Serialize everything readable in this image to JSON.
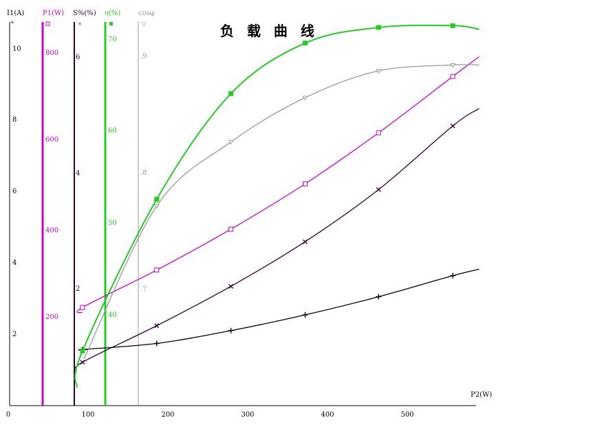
{
  "chart_data": {
    "type": "line",
    "title": "负 载 曲 线",
    "xlabel": "P2(W)",
    "xlim": [
      0,
      590
    ],
    "x_ticks": [
      "0",
      "100",
      "200",
      "300",
      "400",
      "500"
    ],
    "grid": false,
    "axes": [
      {
        "key": "i1",
        "label": "I1(A)",
        "color": "#000000",
        "ticks": [
          "2",
          "4",
          "6",
          "8",
          "10"
        ]
      },
      {
        "key": "p1",
        "label": "P1(W)",
        "color": "#cc00cc",
        "ticks": [
          "200",
          "400",
          "600",
          "800"
        ]
      },
      {
        "key": "s",
        "label": "S%(%)",
        "color": "#330033",
        "ticks": [
          "2",
          "4",
          "6"
        ]
      },
      {
        "key": "eta",
        "label": "η(%)",
        "color": "#22cc22",
        "ticks": [
          "40",
          "50",
          "60",
          "70"
        ]
      },
      {
        "key": "cos",
        "label": "cosφ",
        "color": "#999999",
        "ticks": [
          ".7",
          ".8",
          ".9"
        ]
      }
    ],
    "series": [
      {
        "axis": "i1",
        "marker": "plus",
        "x": [
          93,
          186,
          279,
          372,
          464,
          557
        ],
        "y": [
          1.55,
          1.72,
          2.08,
          2.52,
          3.03,
          3.62
        ]
      },
      {
        "axis": "p1",
        "marker": "square",
        "x": [
          93,
          186,
          279,
          372,
          464,
          557
        ],
        "y": [
          220,
          305,
          398,
          501,
          617,
          745
        ]
      },
      {
        "axis": "s",
        "marker": "x",
        "x": [
          93,
          186,
          279,
          372,
          464,
          557
        ],
        "y": [
          0.72,
          1.35,
          2.03,
          2.8,
          3.7,
          4.8
        ]
      },
      {
        "axis": "eta",
        "marker": "filled",
        "x": [
          93,
          186,
          279,
          372,
          464,
          557
        ],
        "y": [
          36,
          52.5,
          64,
          69.5,
          71.2,
          71.4
        ]
      },
      {
        "axis": "cos",
        "marker": "tri",
        "x": [
          186,
          279,
          372,
          464,
          557
        ],
        "y": [
          0.771,
          0.826,
          0.864,
          0.887,
          0.892
        ]
      }
    ]
  }
}
